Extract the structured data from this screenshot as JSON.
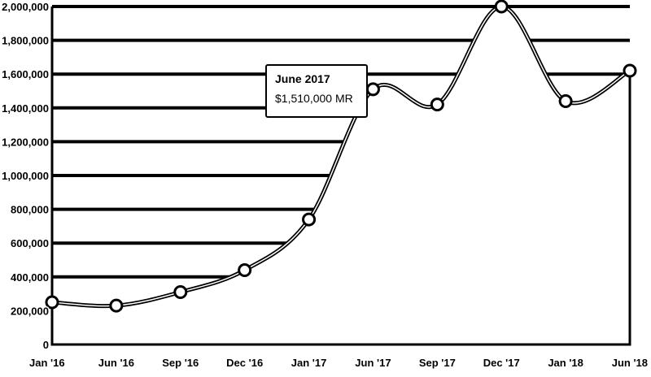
{
  "chart_data": {
    "type": "area",
    "categories": [
      "Jan '16",
      "Jun '16",
      "Sep '16",
      "Dec '16",
      "Jan '17",
      "Jun '17",
      "Sep '17",
      "Dec '17",
      "Jan '18",
      "Jun '18"
    ],
    "series": [
      {
        "values": [
          250000,
          230000,
          310000,
          440000,
          740000,
          1510000,
          1420000,
          2000000,
          1440000,
          1620000
        ]
      }
    ],
    "ylim": [
      0,
      2000000
    ],
    "yticks": [
      "0",
      "200,000",
      "400,000",
      "600,000",
      "800,000",
      "1,000,000",
      "1,200,000",
      "1,400,000",
      "1,600,000",
      "1,800,000",
      "2,000,000"
    ],
    "grid": true,
    "legend": "none",
    "tooltip": {
      "title": "June 2017",
      "value": "$1,510,000 MR",
      "category_index": 5
    },
    "colors": {
      "line": "#000000",
      "area": "#ffffff",
      "grid": "#000000"
    }
  }
}
